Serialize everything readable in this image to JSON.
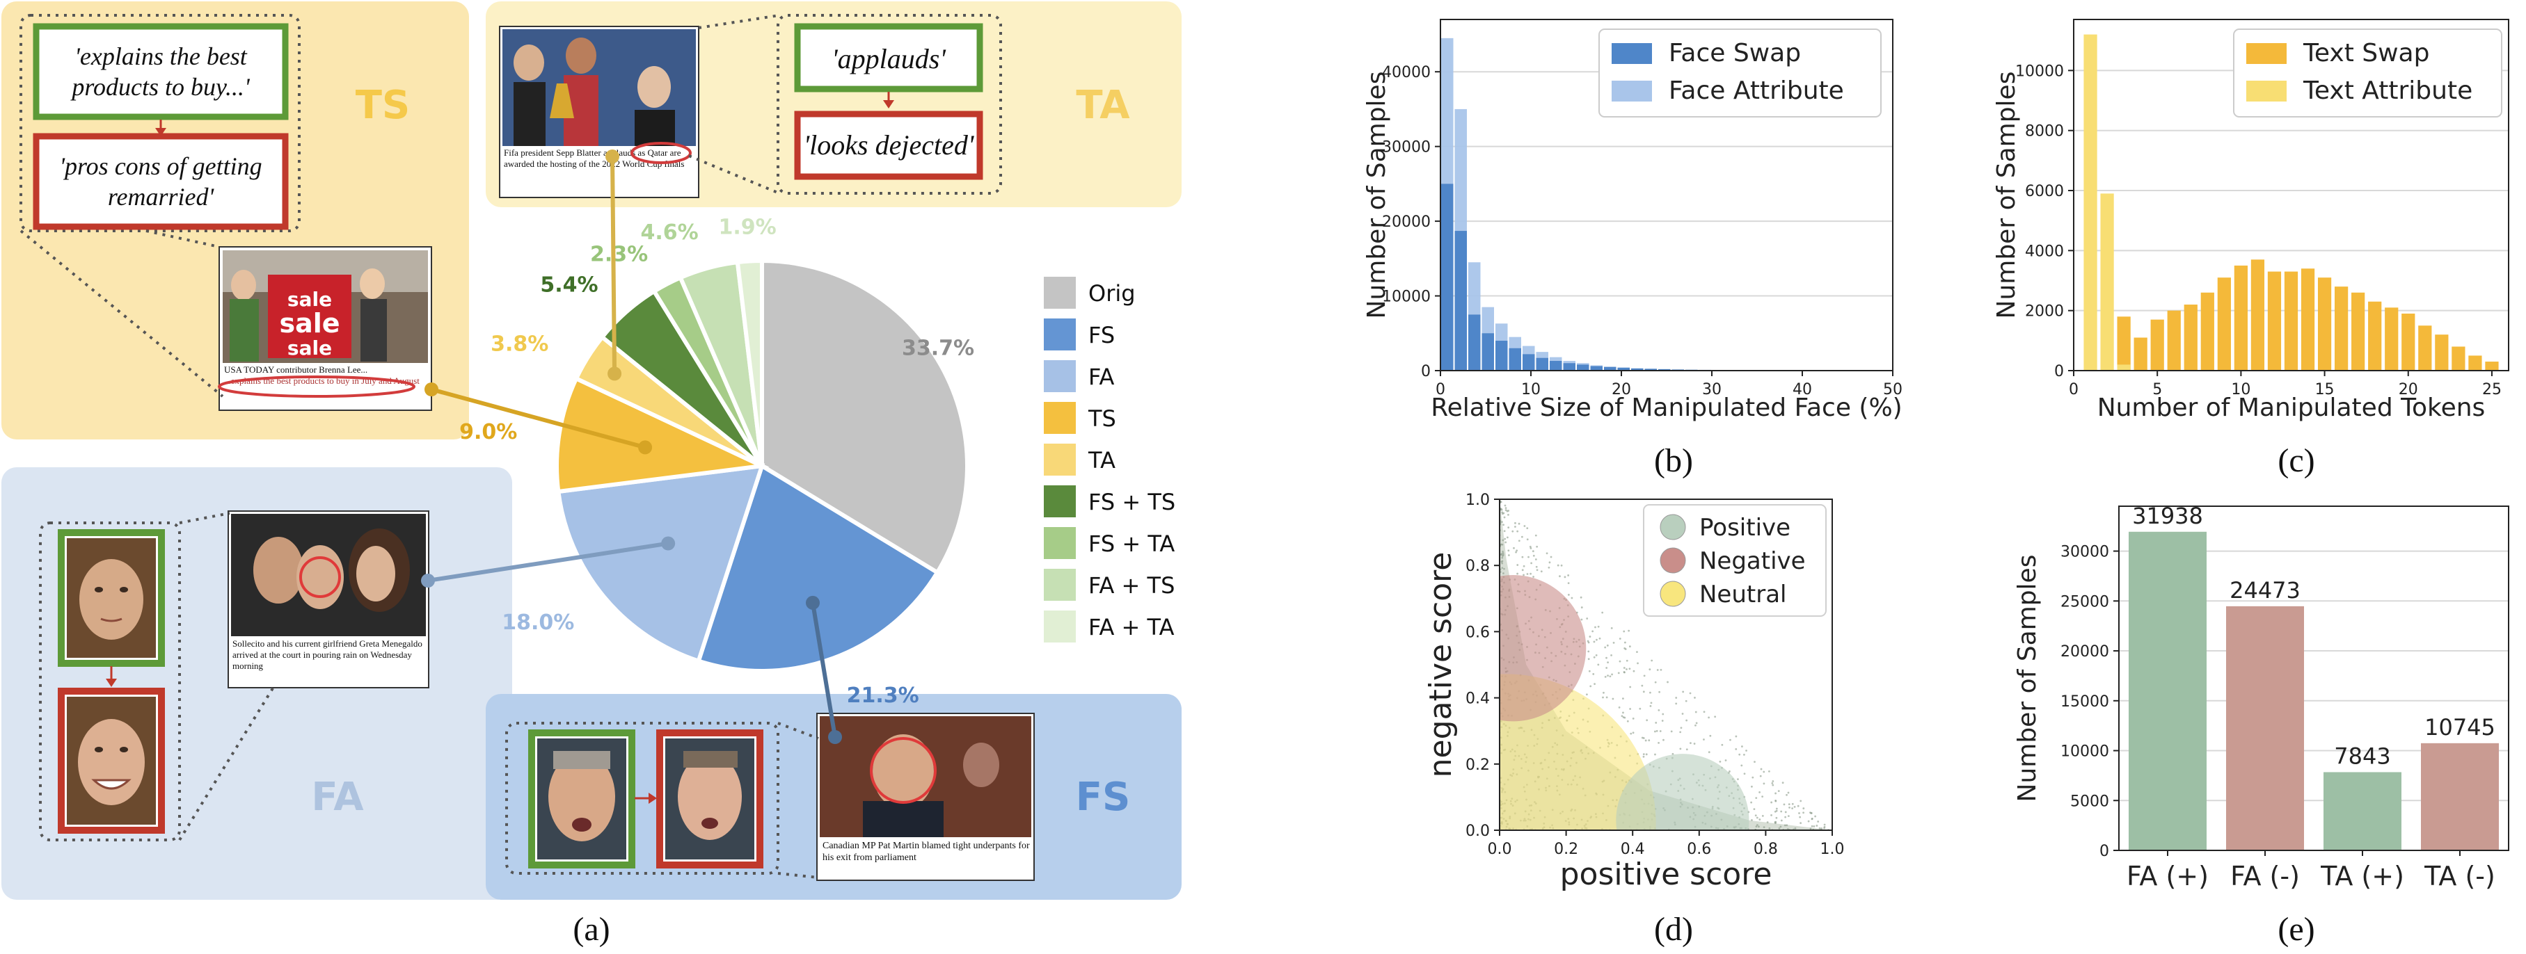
{
  "colors": {
    "orig": "#c4c4c4",
    "fs": "#6495d3",
    "fa": "#a6c1e6",
    "ts": "#f4c03f",
    "ta": "#f8d878",
    "fs_ts": "#5a8a3c",
    "fs_ta": "#a6cc88",
    "fa_ts": "#c6e0b4",
    "fa_ta": "#e1efd4",
    "panel_ts": "#fbe7b0",
    "panel_ta": "#fcf1c6",
    "panel_fa": "#dbe5f2",
    "panel_fs": "#b7cfec",
    "green_frame": "#5d9a38",
    "red_frame": "#c0392b",
    "face_swap": "#4f86c9",
    "face_attr": "#a9c5ea",
    "text_swap": "#f4b93a",
    "text_attr": "#f8de73",
    "positive": "#b9cfbe",
    "negative": "#c98e8a",
    "neutral": "#f8e67e",
    "bar_pos": "#9dbfa5",
    "bar_neg": "#c99b92"
  },
  "panel_a": {
    "caption": "(a)",
    "chart_data": {
      "type": "pie",
      "categories": [
        "Orig",
        "FS",
        "FA",
        "TS",
        "TA",
        "FS + TS",
        "FS + TA",
        "FA + TS",
        "FA + TA"
      ],
      "values": [
        33.7,
        21.3,
        18.0,
        9.0,
        3.8,
        5.4,
        2.3,
        4.6,
        1.9
      ],
      "labels": [
        "33.7%",
        "21.3%",
        "18.0%",
        "9.0%",
        "3.8%",
        "5.4%",
        "2.3%",
        "4.6%",
        "1.9%"
      ],
      "legend": [
        "Orig",
        "FS",
        "FA",
        "TS",
        "TA",
        "FS + TS",
        "FS + TA",
        "FA + TS",
        "FA + TA"
      ],
      "legend_position": "right"
    },
    "ts_box": {
      "tag": "TS",
      "original_text": "'explains the best products to buy...'",
      "manipulated_text": "'pros cons of getting remarried'",
      "image_caption_1": "USA TODAY contributor Brenna Lee...",
      "image_caption_2": "...explains the best products to buy in July and August"
    },
    "ta_box": {
      "tag": "TA",
      "original_text": "'applauds'",
      "manipulated_text": "'looks dejected'",
      "image_caption": "Fifa president Sepp Blatter applauds as Qatar are awarded the hosting of the 2022 World Cup finals"
    },
    "fa_box": {
      "tag": "FA",
      "image_caption": "Sollecito and his current girlfriend Greta Menegaldo arrived at the court in pouring rain on Wednesday morning"
    },
    "fs_box": {
      "tag": "FS",
      "image_caption": "Canadian MP Pat Martin blamed tight underpants for his exit from parliament"
    }
  },
  "panel_b": {
    "caption": "(b)",
    "chart_data": {
      "type": "bar",
      "title": "",
      "xlabel": "Relative Size of Manipulated Face (%)",
      "ylabel": "Number of Samples",
      "xlim": [
        0,
        50
      ],
      "ylim": [
        0,
        47000
      ],
      "xticks": [
        0,
        10,
        20,
        30,
        40,
        50
      ],
      "yticks": [
        0,
        10000,
        20000,
        30000,
        40000
      ],
      "bin_width": 1.5,
      "bin_starts": [
        0,
        1.5,
        3,
        4.5,
        6,
        7.5,
        9,
        10.5,
        12,
        13.5,
        15,
        16.5,
        18,
        19.5,
        21,
        22.5,
        24,
        25.5,
        27,
        28.5,
        30,
        31.5,
        33,
        34.5,
        36,
        37.5,
        39,
        40.5,
        42,
        43.5,
        45,
        46.5,
        48
      ],
      "series": [
        {
          "name": "Face Swap",
          "values": [
            25000,
            18700,
            7500,
            5000,
            4000,
            3000,
            2200,
            1700,
            1300,
            1000,
            800,
            600,
            500,
            400,
            300,
            250,
            200,
            150,
            120,
            100,
            80,
            60,
            50,
            40,
            30,
            25,
            20,
            15,
            10,
            10,
            5,
            5,
            5
          ]
        },
        {
          "name": "Face Attribute",
          "values": [
            44500,
            35000,
            14500,
            8500,
            6300,
            4500,
            3300,
            2500,
            1800,
            1300,
            1000,
            700,
            500,
            380,
            280,
            200,
            150,
            100,
            80,
            60,
            45,
            35,
            25,
            20,
            15,
            10,
            8,
            5,
            5,
            3,
            3,
            2,
            2
          ]
        }
      ],
      "legend_position": "upper right",
      "grid": "y"
    }
  },
  "panel_c": {
    "caption": "(c)",
    "chart_data": {
      "type": "bar",
      "title": "",
      "xlabel": "Number of Manipulated Tokens",
      "ylabel": "Number of Samples",
      "xlim": [
        0,
        26
      ],
      "ylim": [
        0,
        11700
      ],
      "xticks": [
        0,
        5,
        10,
        15,
        20,
        25
      ],
      "yticks": [
        0,
        2000,
        4000,
        6000,
        8000,
        10000
      ],
      "categories": [
        1,
        2,
        3,
        4,
        5,
        6,
        7,
        8,
        9,
        10,
        11,
        12,
        13,
        14,
        15,
        16,
        17,
        18,
        19,
        20,
        21,
        22,
        23,
        24,
        25
      ],
      "series": [
        {
          "name": "Text Swap",
          "values": [
            0,
            0,
            1800,
            1100,
            1700,
            2000,
            2200,
            2600,
            3100,
            3500,
            3700,
            3300,
            3300,
            3400,
            3100,
            2800,
            2600,
            2300,
            2100,
            1900,
            1500,
            1200,
            800,
            500,
            300
          ]
        },
        {
          "name": "Text Attribute",
          "values": [
            11200,
            5900,
            200,
            0,
            0,
            0,
            0,
            0,
            0,
            0,
            0,
            0,
            0,
            0,
            0,
            0,
            0,
            0,
            0,
            0,
            0,
            0,
            0,
            0,
            0
          ]
        }
      ],
      "legend_position": "upper right",
      "grid": "y"
    }
  },
  "panel_d": {
    "caption": "(d)",
    "chart_data": {
      "type": "scatter",
      "title": "",
      "xlabel": "positive score",
      "ylabel": "negative score",
      "xlim": [
        0,
        1.0
      ],
      "ylim": [
        0,
        1.0
      ],
      "xticks": [
        0,
        0.2,
        0.4,
        0.6,
        0.8,
        1.0
      ],
      "yticks": [
        0,
        0.2,
        0.4,
        0.6,
        0.8,
        1.0
      ],
      "tick_labels": [
        "0.0",
        "0.2",
        "0.4",
        "0.6",
        "0.8",
        "1.0"
      ],
      "series": [
        {
          "name": "Positive",
          "center": [
            0.55,
            0.03
          ],
          "radius": 0.2
        },
        {
          "name": "Negative",
          "center": [
            0.04,
            0.55
          ],
          "radius": 0.22
        },
        {
          "name": "Neutral",
          "center": [
            0.02,
            0.02
          ],
          "radius": 0.45
        }
      ],
      "scatter_boundary": "points fill the region under x + y <= 1, densest near the axes",
      "legend_position": "upper right"
    }
  },
  "panel_e": {
    "caption": "(e)",
    "chart_data": {
      "type": "bar",
      "title": "",
      "xlabel": "",
      "ylabel": "Number of Samples",
      "categories": [
        "FA (+)",
        "FA (-)",
        "TA (+)",
        "TA (-)"
      ],
      "values": [
        31938,
        24473,
        7843,
        10745
      ],
      "value_labels": [
        "31938",
        "24473",
        "7843",
        "10745"
      ],
      "ylim": [
        0,
        34500
      ],
      "yticks": [
        0,
        5000,
        10000,
        15000,
        20000,
        25000,
        30000
      ],
      "grid": "y"
    }
  }
}
